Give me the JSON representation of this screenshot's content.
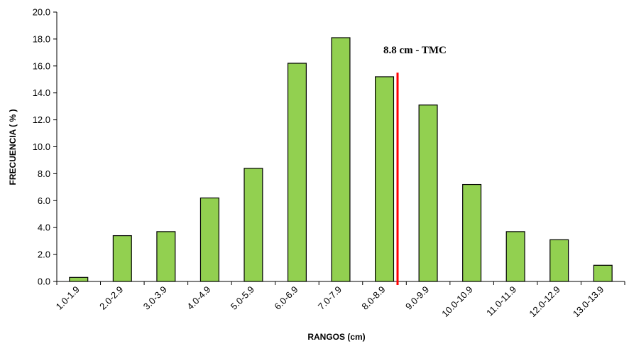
{
  "chart_data": {
    "type": "bar",
    "title": "",
    "xlabel": "RANGOS (cm)",
    "ylabel": "FRECUENCIA ( % )",
    "ylim": [
      0,
      20
    ],
    "y_ticks": [
      "0.0",
      "2.0",
      "4.0",
      "6.0",
      "8.0",
      "10.0",
      "12.0",
      "14.0",
      "16.0",
      "18.0",
      "20.0"
    ],
    "grid": false,
    "categories": [
      "1.0-1.9",
      "2.0-2.9",
      "3.0-3.9",
      "4.0-4.9",
      "5.0-5.9",
      "6.0-6.9",
      "7.0-7.9",
      "8.0-8.9",
      "9.0-9.9",
      "10.0-10.9",
      "11.0-11.9",
      "12.0-12.9",
      "13.0-13.9"
    ],
    "values": [
      0.3,
      3.4,
      3.7,
      6.2,
      8.4,
      16.2,
      18.1,
      15.2,
      13.1,
      7.2,
      3.7,
      3.1,
      1.2
    ],
    "bar_color": "#92d050",
    "annotation": {
      "text": "8.8 cm - TMC",
      "category_position": 8.8,
      "line_color": "#ff0000"
    }
  }
}
